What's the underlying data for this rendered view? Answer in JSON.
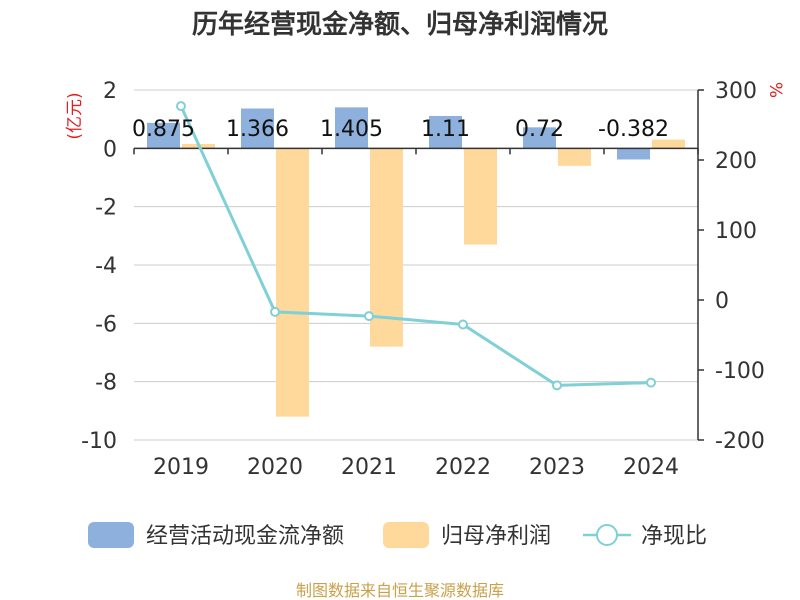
{
  "chart_data": {
    "type": "bar",
    "title": "历年经营现金净额、归母净利润情况",
    "categories": [
      "2019",
      "2020",
      "2021",
      "2022",
      "2023",
      "2024"
    ],
    "left_unit": "(亿元)",
    "right_unit": "%",
    "ylim_left": [
      -10,
      2
    ],
    "ylim_right": [
      -200,
      300
    ],
    "left_ticks": [
      "2",
      "0",
      "-2",
      "-4",
      "-6",
      "-8",
      "-10"
    ],
    "right_ticks": [
      "300",
      "200",
      "100",
      "0",
      "-100",
      "-200"
    ],
    "series": [
      {
        "name": "经营活动现金流净额",
        "kind": "bar",
        "axis": "left",
        "color": "#8eb0dc",
        "values": [
          0.875,
          1.366,
          1.405,
          1.11,
          0.72,
          -0.382
        ],
        "labels": [
          "0.875",
          "1.366",
          "1.405",
          "1.11",
          "0.72",
          "-0.382"
        ]
      },
      {
        "name": "归母净利润",
        "kind": "bar",
        "axis": "left",
        "color": "#fed99b",
        "values": [
          0.15,
          -9.2,
          -6.8,
          -3.3,
          -0.6,
          0.3
        ]
      },
      {
        "name": "净现比",
        "kind": "line",
        "axis": "right",
        "color": "#7fd0d7",
        "values": [
          277,
          -17,
          -23,
          -35,
          -122,
          -118
        ]
      }
    ],
    "grid": true,
    "legend_position": "bottom"
  },
  "source": "制图数据来自恒生聚源数据库"
}
